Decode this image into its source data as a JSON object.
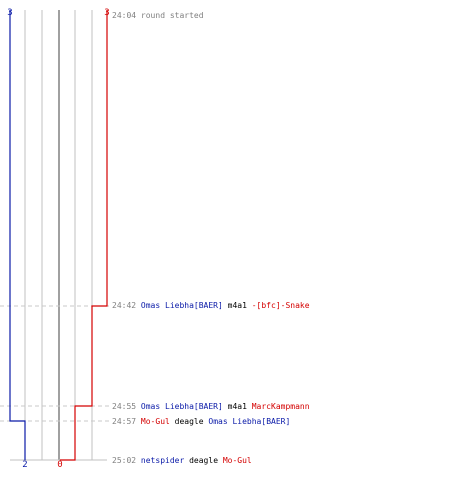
{
  "colors": {
    "ct": "#0a1aa8",
    "t": "#d40000",
    "grid": "#c0c0c0",
    "center": "#808080",
    "dash": "#c8c8c8",
    "time": "#808080",
    "weapon": "#000000"
  },
  "round": {
    "start_counts": {
      "ct": "3",
      "t": "3"
    },
    "end_counts": {
      "ct": "2",
      "t": "0"
    }
  },
  "events": [
    {
      "time": "24:04",
      "text": "round started"
    },
    {
      "time": "24:42",
      "killer": "Omas Liebha[BAER]",
      "killer_team": "ct",
      "weapon": "m4a1",
      "victim": "-[bfc]-Snake",
      "victim_team": "t"
    },
    {
      "time": "24:55",
      "killer": "Omas Liebha[BAER]",
      "killer_team": "ct",
      "weapon": "m4a1",
      "victim": "MarcKampmann",
      "victim_team": "t"
    },
    {
      "time": "24:57",
      "killer": "Mo-Gul",
      "killer_team": "t",
      "weapon": "deagle",
      "victim": "Omas Liebha[BAER]",
      "victim_team": "ct"
    },
    {
      "time": "25:02",
      "killer": "netspider",
      "killer_team": "ct",
      "weapon": "deagle",
      "victim": "Mo-Gul",
      "victim_team": "t"
    }
  ]
}
